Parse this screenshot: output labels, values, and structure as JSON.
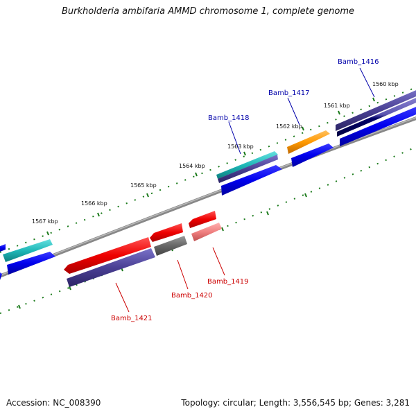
{
  "title": "Burkholderia ambifaria AMMD chromosome 1, complete genome",
  "footer": {
    "accession": "Accession: NC_008390",
    "topology": "Topology: circular; Length: 3,556,545 bp; Genes: 3,281"
  },
  "colors": {
    "forward_label": "#0000aa",
    "reverse_label": "#cc0000",
    "tick": "#1a7a1a",
    "backbone": "#888888"
  },
  "kbp_ticks": [
    {
      "text": "1560 kbp"
    },
    {
      "text": "1561 kbp"
    },
    {
      "text": "1562 kbp"
    },
    {
      "text": "1563 kbp"
    },
    {
      "text": "1564 kbp"
    },
    {
      "text": "1565 kbp"
    },
    {
      "text": "1566 kbp"
    },
    {
      "text": "1567 kbp"
    }
  ],
  "genes": [
    {
      "name": "Bamb_1416",
      "strand": "forward"
    },
    {
      "name": "Bamb_1417",
      "strand": "forward"
    },
    {
      "name": "Bamb_1418",
      "strand": "forward"
    },
    {
      "name": "Bamb_1419",
      "strand": "reverse"
    },
    {
      "name": "Bamb_1420",
      "strand": "reverse"
    },
    {
      "name": "Bamb_1421",
      "strand": "reverse"
    }
  ]
}
